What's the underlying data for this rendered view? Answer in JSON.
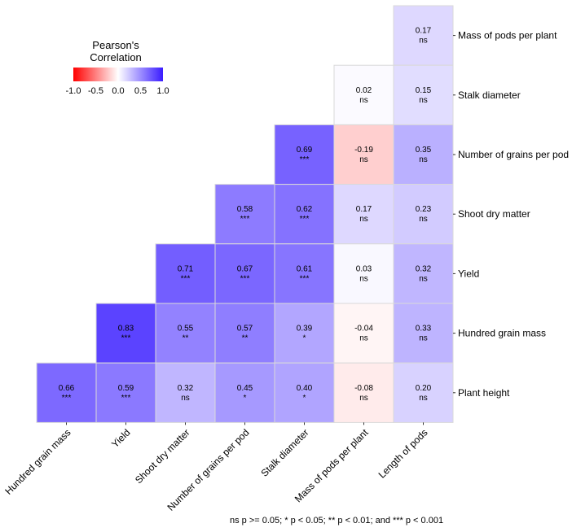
{
  "chart_data": {
    "type": "heatmap",
    "subtype": "lower-triangular correlation matrix",
    "x_labels": [
      "Hundred grain mass",
      "Yield",
      "Shoot dry matter",
      "Number of grains per pod",
      "Stalk diameter",
      "Mass of pods per plant",
      "Length of pods"
    ],
    "y_labels": [
      "Mass of pods per plant",
      "Stalk diameter",
      "Number of grains per pod",
      "Shoot dry matter",
      "Yield",
      "Hundred grain mass",
      "Plant height"
    ],
    "y_axis_position": "right",
    "cells": [
      {
        "row": 0,
        "col": 6,
        "value": 0.17,
        "label": "0.17",
        "sig": "ns"
      },
      {
        "row": 1,
        "col": 5,
        "value": 0.02,
        "label": "0.02",
        "sig": "ns"
      },
      {
        "row": 1,
        "col": 6,
        "value": 0.15,
        "label": "0.15",
        "sig": "ns"
      },
      {
        "row": 2,
        "col": 4,
        "value": 0.69,
        "label": "0.69",
        "sig": "***"
      },
      {
        "row": 2,
        "col": 5,
        "value": -0.19,
        "label": "-0.19",
        "sig": "ns"
      },
      {
        "row": 2,
        "col": 6,
        "value": 0.35,
        "label": "0.35",
        "sig": "ns"
      },
      {
        "row": 3,
        "col": 3,
        "value": 0.58,
        "label": "0.58",
        "sig": "***"
      },
      {
        "row": 3,
        "col": 4,
        "value": 0.62,
        "label": "0.62",
        "sig": "***"
      },
      {
        "row": 3,
        "col": 5,
        "value": 0.17,
        "label": "0.17",
        "sig": "ns"
      },
      {
        "row": 3,
        "col": 6,
        "value": 0.23,
        "label": "0.23",
        "sig": "ns"
      },
      {
        "row": 4,
        "col": 2,
        "value": 0.71,
        "label": "0.71",
        "sig": "***"
      },
      {
        "row": 4,
        "col": 3,
        "value": 0.67,
        "label": "0.67",
        "sig": "***"
      },
      {
        "row": 4,
        "col": 4,
        "value": 0.61,
        "label": "0.61",
        "sig": "***"
      },
      {
        "row": 4,
        "col": 5,
        "value": 0.03,
        "label": "0.03",
        "sig": "ns"
      },
      {
        "row": 4,
        "col": 6,
        "value": 0.32,
        "label": "0.32",
        "sig": "ns"
      },
      {
        "row": 5,
        "col": 1,
        "value": 0.83,
        "label": "0.83",
        "sig": "***"
      },
      {
        "row": 5,
        "col": 2,
        "value": 0.55,
        "label": "0.55",
        "sig": "**"
      },
      {
        "row": 5,
        "col": 3,
        "value": 0.57,
        "label": "0.57",
        "sig": "**"
      },
      {
        "row": 5,
        "col": 4,
        "value": 0.39,
        "label": "0.39",
        "sig": "*"
      },
      {
        "row": 5,
        "col": 5,
        "value": -0.04,
        "label": "-0.04",
        "sig": "ns"
      },
      {
        "row": 5,
        "col": 6,
        "value": 0.33,
        "label": "0.33",
        "sig": "ns"
      },
      {
        "row": 6,
        "col": 0,
        "value": 0.66,
        "label": "0.66",
        "sig": "***"
      },
      {
        "row": 6,
        "col": 1,
        "value": 0.59,
        "label": "0.59",
        "sig": "***"
      },
      {
        "row": 6,
        "col": 2,
        "value": 0.32,
        "label": "0.32",
        "sig": "ns"
      },
      {
        "row": 6,
        "col": 3,
        "value": 0.45,
        "label": "0.45",
        "sig": "*"
      },
      {
        "row": 6,
        "col": 4,
        "value": 0.4,
        "label": "0.40",
        "sig": "*"
      },
      {
        "row": 6,
        "col": 5,
        "value": -0.08,
        "label": "-0.08",
        "sig": "ns"
      },
      {
        "row": 6,
        "col": 6,
        "value": 0.2,
        "label": "0.20",
        "sig": "ns"
      }
    ],
    "legend": {
      "title_line1": "Pearson's",
      "title_line2": "Correlation",
      "ticks": [
        -1.0,
        -0.5,
        0.0,
        0.5,
        1.0
      ],
      "tick_labels": [
        "-1.0",
        "-0.5",
        "0.0",
        "0.5",
        "1.0"
      ],
      "range": [
        -1,
        1
      ],
      "placement": "top-left"
    },
    "colors": {
      "low": "#ff0000",
      "mid": "#ffffff",
      "high": "#3a1cff",
      "grid": "#d9d9d9"
    },
    "footnote": "ns p >= 0.05; * p < 0.05; ** p < 0.01; and *** p < 0.001"
  }
}
